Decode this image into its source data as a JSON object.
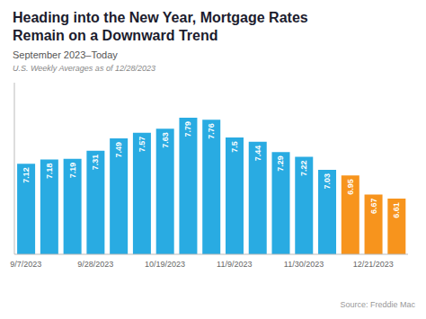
{
  "chart_data": {
    "type": "bar",
    "title": "Heading into the New Year, Mortgage Rates\nRemain on a Downward Trend",
    "subtitle": "September 2023–Today",
    "annotations": [
      "U.S. Weekly Averages as of 12/28/2023",
      "Source: Freddie Mac"
    ],
    "categories": [
      "9/7/2023",
      null,
      null,
      "9/28/2023",
      null,
      null,
      "10/19/2023",
      null,
      null,
      "11/9/2023",
      null,
      null,
      "11/30/2023",
      null,
      null,
      "12/21/2023",
      null
    ],
    "values": [
      7.12,
      7.18,
      7.19,
      7.31,
      7.49,
      7.57,
      7.63,
      7.79,
      7.76,
      7.5,
      7.44,
      7.29,
      7.22,
      7.03,
      6.95,
      6.67,
      6.61
    ],
    "colors": [
      "#29abe2",
      "#29abe2",
      "#29abe2",
      "#29abe2",
      "#29abe2",
      "#29abe2",
      "#29abe2",
      "#29abe2",
      "#29abe2",
      "#29abe2",
      "#29abe2",
      "#29abe2",
      "#29abe2",
      "#29abe2",
      "#f7941d",
      "#f7941d",
      "#f7941d"
    ],
    "ylim": [
      5.8,
      8.3
    ],
    "data_labels": true,
    "grid": false,
    "tick_labels": "x"
  }
}
